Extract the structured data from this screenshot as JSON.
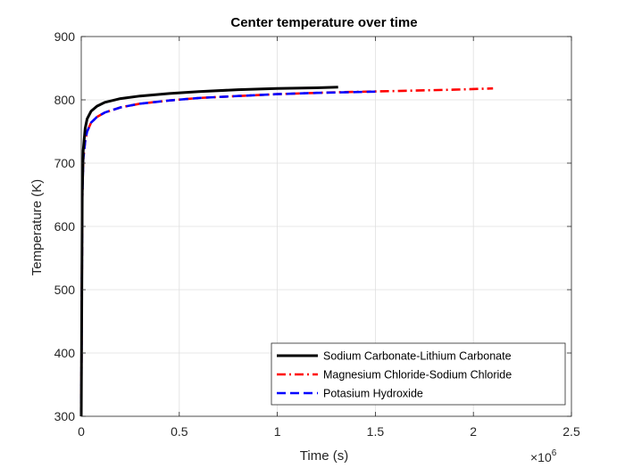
{
  "chart_data": {
    "type": "line",
    "title": "Center temperature over time",
    "xlabel": "Time (s)",
    "ylabel": "Temperature (K)",
    "x_exponent_label": "×10",
    "x_exponent_power": "6",
    "xlim": [
      0,
      2500000
    ],
    "ylim": [
      300,
      900
    ],
    "x_ticks": [
      0,
      500000,
      1000000,
      1500000,
      2000000,
      2500000
    ],
    "x_tick_labels": [
      "0",
      "0.5",
      "1",
      "1.5",
      "2",
      "2.5"
    ],
    "y_ticks": [
      300,
      400,
      500,
      600,
      700,
      800,
      900
    ],
    "y_tick_labels": [
      "300",
      "400",
      "500",
      "600",
      "700",
      "800",
      "900"
    ],
    "grid": true,
    "legend_position": "bottom-right",
    "series": [
      {
        "name": "Sodium Carbonate-Lithium Carbonate",
        "color": "#000000",
        "line_style": "solid",
        "x": [
          0,
          5000,
          10000,
          20000,
          30000,
          50000,
          80000,
          120000,
          200000,
          300000,
          450000,
          600000,
          800000,
          1000000,
          1200000,
          1310000
        ],
        "y": [
          300,
          650,
          720,
          755,
          770,
          782,
          790,
          796,
          802,
          806,
          810,
          813,
          816,
          818,
          819,
          820
        ]
      },
      {
        "name": "Magnesium Chloride-Sodium Chloride",
        "color": "#ff0000",
        "line_style": "dash-dot",
        "x": [
          0,
          5000,
          10000,
          20000,
          30000,
          50000,
          80000,
          120000,
          200000,
          300000,
          450000,
          600000,
          800000,
          1000000,
          1300000,
          1600000,
          1900000,
          2100000
        ],
        "y": [
          300,
          640,
          705,
          735,
          750,
          764,
          773,
          780,
          788,
          794,
          799,
          803,
          806,
          809,
          812,
          814,
          816,
          818
        ]
      },
      {
        "name": "Potasium Hydroxide",
        "color": "#0000ff",
        "line_style": "dashed",
        "x": [
          0,
          5000,
          10000,
          20000,
          30000,
          50000,
          80000,
          120000,
          200000,
          300000,
          450000,
          600000,
          800000,
          1000000,
          1200000,
          1500000
        ],
        "y": [
          300,
          640,
          705,
          735,
          750,
          764,
          773,
          780,
          788,
          794,
          799,
          803,
          806,
          809,
          811,
          813
        ]
      }
    ]
  }
}
